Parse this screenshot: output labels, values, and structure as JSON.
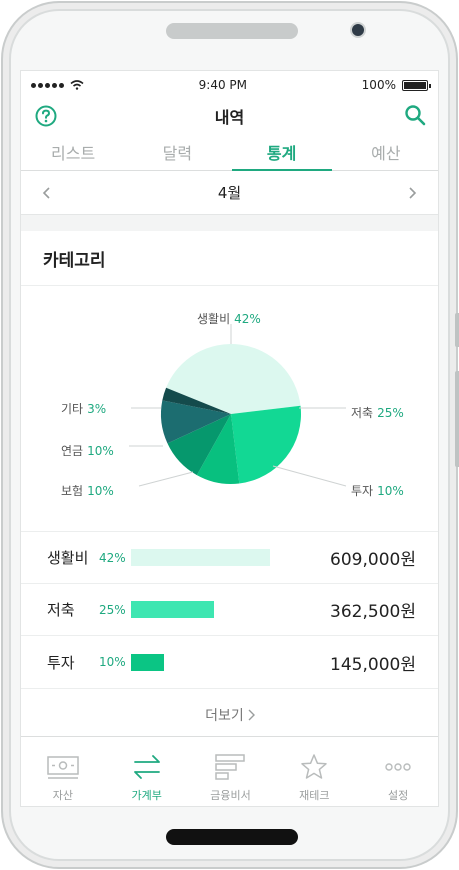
{
  "status": {
    "time": "9:40 PM",
    "battery": "100%"
  },
  "header": {
    "title": "내역",
    "help_icon": "question-circle-icon",
    "search_icon": "search-icon"
  },
  "tabs": [
    {
      "label": "리스트"
    },
    {
      "label": "달력"
    },
    {
      "label": "통계",
      "active": true
    },
    {
      "label": "예산"
    }
  ],
  "month": {
    "label": "4월"
  },
  "category": {
    "title": "카테고리",
    "colors": {
      "accent": "#1fa980"
    },
    "chart_data": {
      "type": "pie",
      "slices": [
        {
          "label": "생활비",
          "value": 42,
          "pct_label": "42%",
          "color": "#dcf8ef"
        },
        {
          "label": "저축",
          "value": 25,
          "pct_label": "25%",
          "color": "#12d894"
        },
        {
          "label": "투자",
          "value": 10,
          "pct_label": "10%",
          "color": "#08c07f"
        },
        {
          "label": "보험",
          "value": 10,
          "pct_label": "10%",
          "color": "#06986d"
        },
        {
          "label": "연금",
          "value": 10,
          "pct_label": "10%",
          "color": "#1c6d70"
        },
        {
          "label": "기타",
          "value": 3,
          "pct_label": "3%",
          "color": "#144b4c"
        }
      ]
    },
    "rows": [
      {
        "name": "생활비",
        "pct": "42%",
        "amount": "609,000원",
        "share": 0.42,
        "color": "#dcf8ef"
      },
      {
        "name": "저축",
        "pct": "25%",
        "amount": "362,500원",
        "share": 0.25,
        "color": "#3ee6b1"
      },
      {
        "name": "투자",
        "pct": "10%",
        "amount": "145,000원",
        "share": 0.1,
        "color": "#0bc584"
      }
    ],
    "more_label": "더보기"
  },
  "tabbar": [
    {
      "label": "자산",
      "icon": "bill-icon"
    },
    {
      "label": "가계부",
      "icon": "transfer-arrows-icon",
      "active": true
    },
    {
      "label": "금융비서",
      "icon": "bars-icon"
    },
    {
      "label": "재테크",
      "icon": "star-icon"
    },
    {
      "label": "설정",
      "icon": "more-dots-icon"
    }
  ]
}
